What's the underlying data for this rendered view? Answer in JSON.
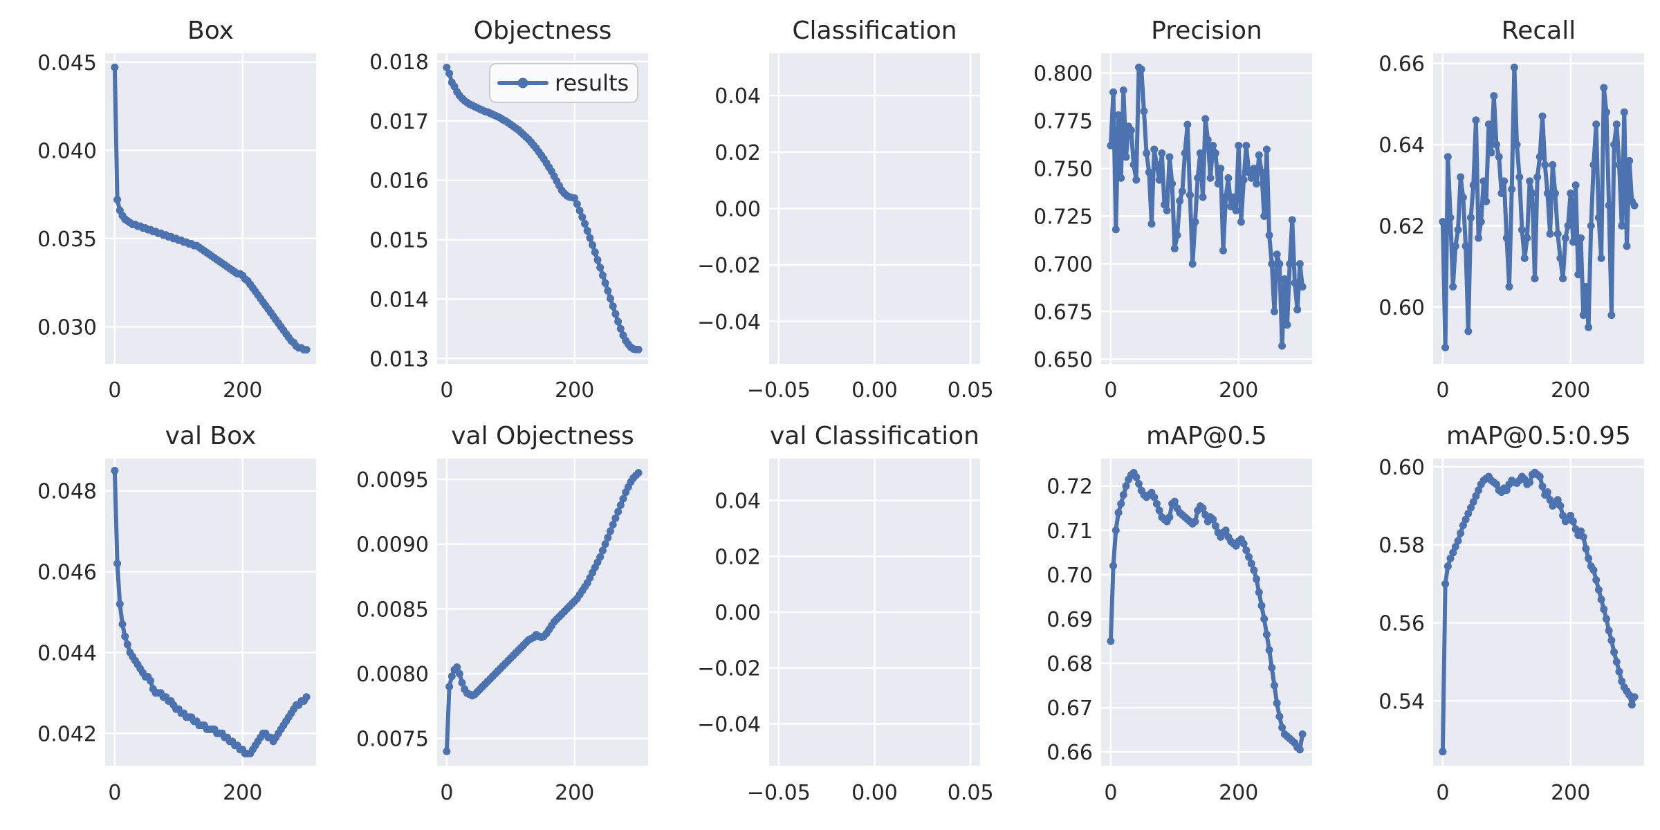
{
  "figure": {
    "background": "#ffffff",
    "axes_background": "#eaeaf2",
    "grid_color": "#ffffff",
    "line_color": "#4c72b0",
    "text_color": "#262626",
    "legend": {
      "label": "results",
      "frame_fill": "#ffffff",
      "frame_border": "#cccccc"
    }
  },
  "epochs": [
    0,
    4,
    8,
    12,
    16,
    20,
    24,
    28,
    32,
    36,
    40,
    44,
    48,
    52,
    56,
    60,
    64,
    68,
    72,
    76,
    80,
    84,
    88,
    92,
    96,
    100,
    104,
    108,
    112,
    116,
    120,
    124,
    128,
    132,
    136,
    140,
    144,
    148,
    152,
    156,
    160,
    164,
    168,
    172,
    176,
    180,
    184,
    188,
    192,
    196,
    200,
    204,
    208,
    212,
    216,
    220,
    224,
    228,
    232,
    236,
    240,
    244,
    248,
    252,
    256,
    260,
    264,
    268,
    272,
    276,
    280,
    284,
    288,
    292,
    296,
    300
  ],
  "chart_data": [
    {
      "type": "line",
      "row": 0,
      "title": "Box",
      "series_name": "results",
      "legend": false,
      "xlim": [
        -15,
        315
      ],
      "ylim": [
        0.0279,
        0.0455
      ],
      "xticks": [
        0,
        200
      ],
      "xtick_labels": [
        "0",
        "200"
      ],
      "yticks": [
        0.03,
        0.035,
        0.04,
        0.045
      ],
      "ytick_labels": [
        "0.030",
        "0.035",
        "0.040",
        "0.045"
      ],
      "y": [
        0.0447,
        0.0372,
        0.0366,
        0.0363,
        0.0361,
        0.036,
        0.0359,
        0.0358,
        0.0358,
        0.0357,
        0.0357,
        0.0356,
        0.0356,
        0.0355,
        0.0355,
        0.0354,
        0.0354,
        0.0353,
        0.0353,
        0.0352,
        0.0352,
        0.0351,
        0.0351,
        0.035,
        0.035,
        0.0349,
        0.0349,
        0.0348,
        0.0348,
        0.0347,
        0.0347,
        0.0346,
        0.0346,
        0.0345,
        0.0344,
        0.0343,
        0.0342,
        0.0341,
        0.034,
        0.0339,
        0.0338,
        0.0337,
        0.0336,
        0.0335,
        0.0334,
        0.0333,
        0.0332,
        0.0331,
        0.033,
        0.033,
        0.0329,
        0.0327,
        0.0326,
        0.0324,
        0.0322,
        0.032,
        0.0318,
        0.0316,
        0.0314,
        0.0312,
        0.031,
        0.0308,
        0.0306,
        0.0304,
        0.0302,
        0.03,
        0.0298,
        0.0296,
        0.0294,
        0.0292,
        0.0291,
        0.0289,
        0.0288,
        0.0288,
        0.0287,
        0.0287
      ]
    },
    {
      "type": "line",
      "row": 0,
      "title": "Objectness",
      "series_name": "results",
      "legend": true,
      "xlim": [
        -15,
        315
      ],
      "ylim": [
        0.01291,
        0.01814
      ],
      "xticks": [
        0,
        200
      ],
      "xtick_labels": [
        "0",
        "200"
      ],
      "yticks": [
        0.013,
        0.014,
        0.015,
        0.016,
        0.017,
        0.018
      ],
      "ytick_labels": [
        "0.013",
        "0.014",
        "0.015",
        "0.016",
        "0.017",
        "0.018"
      ],
      "y": [
        0.0179,
        0.0178,
        0.01765,
        0.01758,
        0.01749,
        0.01743,
        0.01738,
        0.01734,
        0.01731,
        0.01728,
        0.01726,
        0.01724,
        0.01722,
        0.0172,
        0.01718,
        0.01716,
        0.01715,
        0.01713,
        0.01711,
        0.01709,
        0.01707,
        0.01705,
        0.01702,
        0.017,
        0.01697,
        0.01694,
        0.01691,
        0.01688,
        0.01685,
        0.01681,
        0.01677,
        0.01673,
        0.01669,
        0.01664,
        0.01659,
        0.01654,
        0.01648,
        0.01642,
        0.01636,
        0.01629,
        0.01622,
        0.01615,
        0.01607,
        0.01599,
        0.01591,
        0.01583,
        0.01578,
        0.01574,
        0.01572,
        0.01571,
        0.0157,
        0.0156,
        0.01549,
        0.01538,
        0.01527,
        0.01515,
        0.01503,
        0.01491,
        0.01479,
        0.01466,
        0.01453,
        0.0144,
        0.01427,
        0.01414,
        0.01401,
        0.01388,
        0.01375,
        0.01362,
        0.0135,
        0.01339,
        0.0133,
        0.01324,
        0.01319,
        0.01316,
        0.01315,
        0.01315
      ]
    },
    {
      "type": "line",
      "row": 0,
      "title": "Classification",
      "series_name": "results",
      "legend": false,
      "xlim": [
        -0.055,
        0.055
      ],
      "ylim": [
        -0.055,
        0.055
      ],
      "xticks": [
        -0.05,
        0.0,
        0.05
      ],
      "xtick_labels": [
        "−0.05",
        "0.00",
        "0.05"
      ],
      "yticks": [
        -0.04,
        -0.02,
        0.0,
        0.02,
        0.04
      ],
      "ytick_labels": [
        "−0.04",
        "−0.02",
        "0.00",
        "0.02",
        "0.04"
      ],
      "y": null
    },
    {
      "type": "line",
      "row": 0,
      "title": "Precision",
      "series_name": "results",
      "legend": false,
      "xlim": [
        -15,
        315
      ],
      "ylim": [
        0.6476,
        0.8104
      ],
      "xticks": [
        0,
        200
      ],
      "xtick_labels": [
        "0",
        "200"
      ],
      "yticks": [
        0.65,
        0.675,
        0.7,
        0.725,
        0.75,
        0.775,
        0.8
      ],
      "ytick_labels": [
        "0.650",
        "0.675",
        "0.700",
        "0.725",
        "0.750",
        "0.775",
        "0.800"
      ],
      "y": [
        0.762,
        0.79,
        0.718,
        0.778,
        0.745,
        0.791,
        0.756,
        0.772,
        0.77,
        0.752,
        0.744,
        0.803,
        0.802,
        0.78,
        0.758,
        0.748,
        0.721,
        0.76,
        0.752,
        0.744,
        0.758,
        0.731,
        0.728,
        0.756,
        0.742,
        0.708,
        0.715,
        0.733,
        0.738,
        0.758,
        0.773,
        0.736,
        0.7,
        0.722,
        0.745,
        0.758,
        0.735,
        0.776,
        0.765,
        0.745,
        0.762,
        0.758,
        0.742,
        0.75,
        0.707,
        0.735,
        0.745,
        0.73,
        0.735,
        0.728,
        0.762,
        0.722,
        0.744,
        0.762,
        0.748,
        0.745,
        0.75,
        0.742,
        0.757,
        0.748,
        0.725,
        0.76,
        0.715,
        0.7,
        0.675,
        0.705,
        0.7,
        0.657,
        0.692,
        0.668,
        0.7,
        0.723,
        0.69,
        0.676,
        0.7,
        0.688
      ]
    },
    {
      "type": "line",
      "row": 0,
      "title": "Recall",
      "series_name": "results",
      "legend": false,
      "xlim": [
        -15,
        315
      ],
      "ylim": [
        0.586,
        0.6625
      ],
      "xticks": [
        0,
        200
      ],
      "xtick_labels": [
        "0",
        "200"
      ],
      "yticks": [
        0.6,
        0.62,
        0.64,
        0.66
      ],
      "ytick_labels": [
        "0.60",
        "0.62",
        "0.64",
        "0.66"
      ],
      "y": [
        0.621,
        0.59,
        0.637,
        0.622,
        0.605,
        0.615,
        0.619,
        0.632,
        0.627,
        0.615,
        0.594,
        0.622,
        0.63,
        0.646,
        0.617,
        0.621,
        0.631,
        0.626,
        0.645,
        0.638,
        0.652,
        0.64,
        0.637,
        0.628,
        0.631,
        0.617,
        0.605,
        0.629,
        0.659,
        0.64,
        0.632,
        0.619,
        0.612,
        0.617,
        0.631,
        0.628,
        0.607,
        0.632,
        0.637,
        0.647,
        0.635,
        0.628,
        0.618,
        0.635,
        0.628,
        0.618,
        0.612,
        0.607,
        0.617,
        0.62,
        0.628,
        0.616,
        0.63,
        0.608,
        0.617,
        0.598,
        0.605,
        0.595,
        0.62,
        0.635,
        0.645,
        0.622,
        0.612,
        0.654,
        0.648,
        0.625,
        0.598,
        0.64,
        0.645,
        0.635,
        0.62,
        0.648,
        0.615,
        0.636,
        0.626,
        0.625
      ]
    },
    {
      "type": "line",
      "row": 1,
      "title": "val Box",
      "series_name": "results",
      "legend": false,
      "xlim": [
        -15,
        315
      ],
      "ylim": [
        0.0412,
        0.0488
      ],
      "xticks": [
        0,
        200
      ],
      "xtick_labels": [
        "0",
        "200"
      ],
      "yticks": [
        0.042,
        0.044,
        0.046,
        0.048
      ],
      "ytick_labels": [
        "0.042",
        "0.044",
        "0.046",
        "0.048"
      ],
      "y": [
        0.0485,
        0.0462,
        0.0452,
        0.0447,
        0.0444,
        0.0442,
        0.044,
        0.0439,
        0.0438,
        0.0437,
        0.0436,
        0.0435,
        0.0434,
        0.0434,
        0.0433,
        0.0431,
        0.043,
        0.043,
        0.043,
        0.0429,
        0.0429,
        0.0428,
        0.0428,
        0.0427,
        0.0426,
        0.0426,
        0.0425,
        0.0425,
        0.0424,
        0.0424,
        0.0424,
        0.0423,
        0.0423,
        0.0422,
        0.0422,
        0.0422,
        0.0421,
        0.0421,
        0.0421,
        0.0421,
        0.042,
        0.042,
        0.042,
        0.0419,
        0.0419,
        0.0418,
        0.0418,
        0.0417,
        0.0417,
        0.0416,
        0.0416,
        0.0415,
        0.0415,
        0.0415,
        0.0416,
        0.0417,
        0.0418,
        0.0419,
        0.042,
        0.042,
        0.0419,
        0.0419,
        0.0418,
        0.0419,
        0.042,
        0.0421,
        0.0422,
        0.0423,
        0.0424,
        0.0425,
        0.0426,
        0.0427,
        0.0427,
        0.0428,
        0.0428,
        0.0429
      ]
    },
    {
      "type": "line",
      "row": 1,
      "title": "val Objectness",
      "series_name": "results",
      "legend": false,
      "xlim": [
        -15,
        315
      ],
      "ylim": [
        0.00729,
        0.00966
      ],
      "xticks": [
        0,
        200
      ],
      "xtick_labels": [
        "0",
        "200"
      ],
      "yticks": [
        0.0075,
        0.008,
        0.0085,
        0.009,
        0.0095
      ],
      "ytick_labels": [
        "0.0075",
        "0.0080",
        "0.0085",
        "0.0090",
        "0.0095"
      ],
      "y": [
        0.0074,
        0.0079,
        0.00798,
        0.00803,
        0.00805,
        0.008,
        0.00793,
        0.00788,
        0.00785,
        0.00784,
        0.00783,
        0.00784,
        0.00786,
        0.00788,
        0.0079,
        0.00792,
        0.00794,
        0.00796,
        0.00798,
        0.008,
        0.00802,
        0.00804,
        0.00806,
        0.00808,
        0.0081,
        0.00812,
        0.00814,
        0.00816,
        0.00818,
        0.0082,
        0.00822,
        0.00824,
        0.00826,
        0.00827,
        0.00828,
        0.0083,
        0.00829,
        0.00828,
        0.00829,
        0.00831,
        0.00834,
        0.00837,
        0.0084,
        0.00842,
        0.00844,
        0.00846,
        0.00848,
        0.0085,
        0.00852,
        0.00854,
        0.00856,
        0.00858,
        0.00861,
        0.00864,
        0.00867,
        0.0087,
        0.00874,
        0.00878,
        0.00882,
        0.00886,
        0.0089,
        0.00895,
        0.009,
        0.00905,
        0.0091,
        0.00915,
        0.0092,
        0.00925,
        0.0093,
        0.00935,
        0.0094,
        0.00944,
        0.00948,
        0.00951,
        0.00953,
        0.00955
      ]
    },
    {
      "type": "line",
      "row": 1,
      "title": "val Classification",
      "series_name": "results",
      "legend": false,
      "xlim": [
        -0.055,
        0.055
      ],
      "ylim": [
        -0.055,
        0.055
      ],
      "xticks": [
        -0.05,
        0.0,
        0.05
      ],
      "xtick_labels": [
        "−0.05",
        "0.00",
        "0.05"
      ],
      "yticks": [
        -0.04,
        -0.02,
        0.0,
        0.02,
        0.04
      ],
      "ytick_labels": [
        "−0.04",
        "−0.02",
        "0.00",
        "0.02",
        "0.04"
      ],
      "y": null
    },
    {
      "type": "line",
      "row": 1,
      "title": "mAP@0.5",
      "series_name": "results",
      "legend": false,
      "xlim": [
        -15,
        315
      ],
      "ylim": [
        0.6569,
        0.7262
      ],
      "xticks": [
        0,
        200
      ],
      "xtick_labels": [
        "0",
        "200"
      ],
      "yticks": [
        0.66,
        0.67,
        0.68,
        0.69,
        0.7,
        0.71,
        0.72
      ],
      "ytick_labels": [
        "0.66",
        "0.67",
        "0.68",
        "0.69",
        "0.70",
        "0.71",
        "0.72"
      ],
      "y": [
        0.685,
        0.702,
        0.71,
        0.714,
        0.716,
        0.718,
        0.72,
        0.7215,
        0.7225,
        0.723,
        0.722,
        0.7205,
        0.719,
        0.718,
        0.7175,
        0.718,
        0.7185,
        0.7175,
        0.716,
        0.7145,
        0.713,
        0.7125,
        0.712,
        0.713,
        0.716,
        0.7165,
        0.715,
        0.714,
        0.7135,
        0.713,
        0.7125,
        0.712,
        0.7115,
        0.712,
        0.7145,
        0.7155,
        0.715,
        0.7135,
        0.712,
        0.713,
        0.7125,
        0.711,
        0.7095,
        0.7085,
        0.7095,
        0.71,
        0.7085,
        0.7075,
        0.707,
        0.7065,
        0.7075,
        0.708,
        0.707,
        0.7055,
        0.704,
        0.7025,
        0.701,
        0.699,
        0.696,
        0.693,
        0.69,
        0.6865,
        0.683,
        0.679,
        0.675,
        0.671,
        0.668,
        0.6655,
        0.664,
        0.6635,
        0.663,
        0.6625,
        0.662,
        0.661,
        0.6605,
        0.664
      ]
    },
    {
      "type": "line",
      "row": 1,
      "title": "mAP@0.5:0.95",
      "series_name": "results",
      "legend": false,
      "xlim": [
        -15,
        315
      ],
      "ylim": [
        0.5234,
        0.6021
      ],
      "xticks": [
        0,
        200
      ],
      "xtick_labels": [
        "0",
        "200"
      ],
      "yticks": [
        0.54,
        0.56,
        0.58,
        0.6
      ],
      "ytick_labels": [
        "0.54",
        "0.56",
        "0.58",
        "0.60"
      ],
      "y": [
        0.527,
        0.57,
        0.5745,
        0.5765,
        0.578,
        0.5795,
        0.581,
        0.583,
        0.585,
        0.5865,
        0.588,
        0.5895,
        0.591,
        0.5925,
        0.594,
        0.5955,
        0.5965,
        0.597,
        0.5975,
        0.5965,
        0.596,
        0.5955,
        0.594,
        0.5935,
        0.5945,
        0.594,
        0.5955,
        0.5965,
        0.596,
        0.5958,
        0.5965,
        0.5975,
        0.5968,
        0.5955,
        0.596,
        0.598,
        0.5985,
        0.598,
        0.5975,
        0.595,
        0.5928,
        0.5935,
        0.5915,
        0.59,
        0.5905,
        0.5915,
        0.59,
        0.5875,
        0.586,
        0.5865,
        0.5875,
        0.586,
        0.584,
        0.5825,
        0.5835,
        0.582,
        0.579,
        0.5765,
        0.5745,
        0.5735,
        0.571,
        0.5685,
        0.566,
        0.5635,
        0.561,
        0.558,
        0.5555,
        0.5525,
        0.55,
        0.5475,
        0.545,
        0.5435,
        0.5425,
        0.5415,
        0.539,
        0.541
      ]
    }
  ]
}
